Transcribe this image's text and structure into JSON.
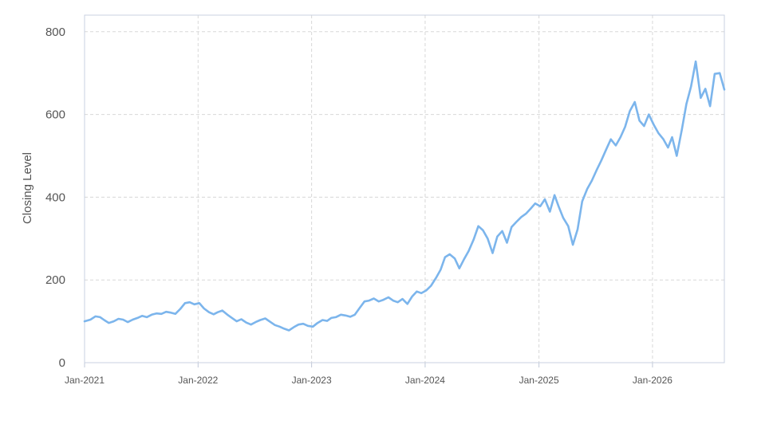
{
  "chart_data": {
    "type": "line",
    "ylabel": "Closing Level",
    "xlabel": "",
    "ylim": [
      0,
      840
    ],
    "xlim": [
      "2021-01-01",
      "2026-08-20"
    ],
    "y_ticks": [
      0,
      200,
      400,
      600,
      800
    ],
    "x_ticks": [
      {
        "date": "2021-01-01",
        "label": "Jan-2021"
      },
      {
        "date": "2022-01-01",
        "label": "Jan-2022"
      },
      {
        "date": "2023-01-01",
        "label": "Jan-2023"
      },
      {
        "date": "2024-01-01",
        "label": "Jan-2024"
      },
      {
        "date": "2025-01-01",
        "label": "Jan-2025"
      },
      {
        "date": "2026-01-01",
        "label": "Jan-2026"
      }
    ],
    "grid": true,
    "line_color": "#7cb5ec",
    "series": [
      {
        "name": "",
        "points": [
          [
            "2021-01-01",
            100
          ],
          [
            "2021-01-20",
            104
          ],
          [
            "2021-02-05",
            112
          ],
          [
            "2021-02-20",
            110
          ],
          [
            "2021-03-05",
            103
          ],
          [
            "2021-03-20",
            96
          ],
          [
            "2021-04-05",
            100
          ],
          [
            "2021-04-20",
            106
          ],
          [
            "2021-05-05",
            104
          ],
          [
            "2021-05-20",
            98
          ],
          [
            "2021-06-05",
            104
          ],
          [
            "2021-06-20",
            108
          ],
          [
            "2021-07-05",
            113
          ],
          [
            "2021-07-20",
            110
          ],
          [
            "2021-08-05",
            116
          ],
          [
            "2021-08-20",
            119
          ],
          [
            "2021-09-05",
            118
          ],
          [
            "2021-09-20",
            123
          ],
          [
            "2021-10-05",
            121
          ],
          [
            "2021-10-20",
            118
          ],
          [
            "2021-11-05",
            130
          ],
          [
            "2021-11-20",
            144
          ],
          [
            "2021-12-05",
            146
          ],
          [
            "2021-12-20",
            141
          ],
          [
            "2022-01-05",
            144
          ],
          [
            "2022-01-20",
            131
          ],
          [
            "2022-02-05",
            122
          ],
          [
            "2022-02-20",
            117
          ],
          [
            "2022-03-05",
            122
          ],
          [
            "2022-03-20",
            126
          ],
          [
            "2022-04-05",
            116
          ],
          [
            "2022-04-20",
            108
          ],
          [
            "2022-05-05",
            100
          ],
          [
            "2022-05-20",
            105
          ],
          [
            "2022-06-05",
            97
          ],
          [
            "2022-06-20",
            92
          ],
          [
            "2022-07-05",
            98
          ],
          [
            "2022-07-20",
            103
          ],
          [
            "2022-08-05",
            107
          ],
          [
            "2022-08-20",
            99
          ],
          [
            "2022-09-05",
            91
          ],
          [
            "2022-09-20",
            87
          ],
          [
            "2022-10-05",
            82
          ],
          [
            "2022-10-20",
            78
          ],
          [
            "2022-11-05",
            86
          ],
          [
            "2022-11-20",
            92
          ],
          [
            "2022-12-05",
            94
          ],
          [
            "2022-12-20",
            89
          ],
          [
            "2023-01-05",
            87
          ],
          [
            "2023-01-20",
            96
          ],
          [
            "2023-02-05",
            103
          ],
          [
            "2023-02-20",
            101
          ],
          [
            "2023-03-05",
            108
          ],
          [
            "2023-03-20",
            110
          ],
          [
            "2023-04-05",
            116
          ],
          [
            "2023-04-20",
            114
          ],
          [
            "2023-05-05",
            111
          ],
          [
            "2023-05-20",
            116
          ],
          [
            "2023-06-05",
            133
          ],
          [
            "2023-06-20",
            148
          ],
          [
            "2023-07-05",
            150
          ],
          [
            "2023-07-20",
            155
          ],
          [
            "2023-08-05",
            148
          ],
          [
            "2023-08-20",
            152
          ],
          [
            "2023-09-05",
            158
          ],
          [
            "2023-09-20",
            150
          ],
          [
            "2023-10-05",
            146
          ],
          [
            "2023-10-20",
            154
          ],
          [
            "2023-11-05",
            142
          ],
          [
            "2023-11-20",
            160
          ],
          [
            "2023-12-05",
            172
          ],
          [
            "2023-12-20",
            168
          ],
          [
            "2024-01-05",
            175
          ],
          [
            "2024-01-20",
            186
          ],
          [
            "2024-02-05",
            205
          ],
          [
            "2024-02-20",
            225
          ],
          [
            "2024-03-05",
            255
          ],
          [
            "2024-03-20",
            262
          ],
          [
            "2024-04-05",
            252
          ],
          [
            "2024-04-20",
            228
          ],
          [
            "2024-05-05",
            250
          ],
          [
            "2024-05-20",
            270
          ],
          [
            "2024-06-05",
            298
          ],
          [
            "2024-06-20",
            330
          ],
          [
            "2024-07-05",
            320
          ],
          [
            "2024-07-20",
            300
          ],
          [
            "2024-08-05",
            265
          ],
          [
            "2024-08-20",
            305
          ],
          [
            "2024-09-05",
            318
          ],
          [
            "2024-09-20",
            290
          ],
          [
            "2024-10-05",
            328
          ],
          [
            "2024-10-20",
            340
          ],
          [
            "2024-11-05",
            352
          ],
          [
            "2024-11-20",
            360
          ],
          [
            "2024-12-05",
            372
          ],
          [
            "2024-12-20",
            385
          ],
          [
            "2025-01-05",
            378
          ],
          [
            "2025-01-20",
            395
          ],
          [
            "2025-02-05",
            365
          ],
          [
            "2025-02-20",
            405
          ],
          [
            "2025-03-05",
            378
          ],
          [
            "2025-03-20",
            350
          ],
          [
            "2025-04-05",
            330
          ],
          [
            "2025-04-20",
            285
          ],
          [
            "2025-05-05",
            322
          ],
          [
            "2025-05-20",
            390
          ],
          [
            "2025-06-05",
            420
          ],
          [
            "2025-06-20",
            440
          ],
          [
            "2025-07-05",
            465
          ],
          [
            "2025-07-20",
            488
          ],
          [
            "2025-08-05",
            515
          ],
          [
            "2025-08-20",
            540
          ],
          [
            "2025-09-05",
            525
          ],
          [
            "2025-09-20",
            545
          ],
          [
            "2025-10-05",
            570
          ],
          [
            "2025-10-20",
            608
          ],
          [
            "2025-11-05",
            630
          ],
          [
            "2025-11-20",
            585
          ],
          [
            "2025-12-05",
            572
          ],
          [
            "2025-12-20",
            600
          ],
          [
            "2026-01-05",
            575
          ],
          [
            "2026-01-20",
            555
          ],
          [
            "2026-02-05",
            540
          ],
          [
            "2026-02-20",
            520
          ],
          [
            "2026-03-05",
            545
          ],
          [
            "2026-03-20",
            500
          ],
          [
            "2026-04-05",
            562
          ],
          [
            "2026-04-20",
            625
          ],
          [
            "2026-05-05",
            668
          ],
          [
            "2026-05-20",
            728
          ],
          [
            "2026-06-05",
            640
          ],
          [
            "2026-06-20",
            662
          ],
          [
            "2026-07-05",
            620
          ],
          [
            "2026-07-20",
            698
          ],
          [
            "2026-08-05",
            700
          ],
          [
            "2026-08-20",
            660
          ]
        ]
      }
    ]
  }
}
